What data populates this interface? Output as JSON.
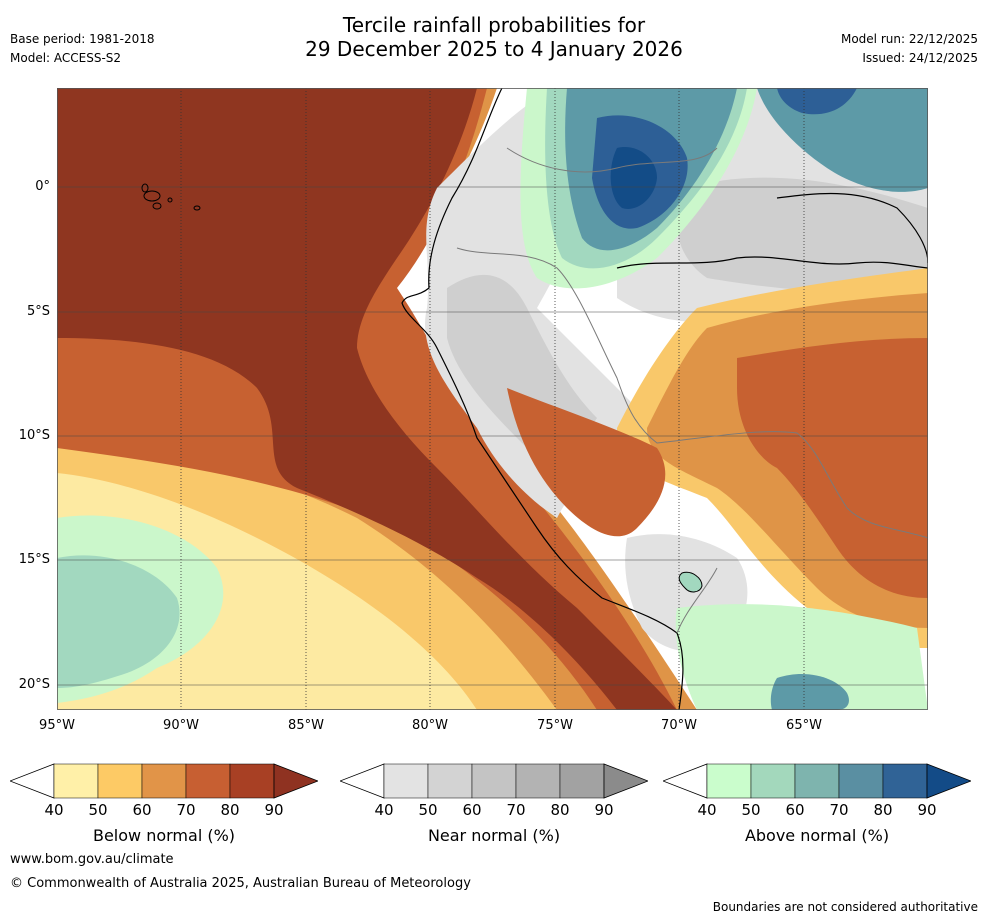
{
  "header": {
    "base_period": "Base period: 1981-2018",
    "model": "Model: ACCESS-S2",
    "title_line1": "Tercile rainfall probabilities for",
    "title_line2": "29 December 2025 to 4 January 2026",
    "model_run": "Model run: 22/12/2025",
    "issued": "Issued: 24/12/2025"
  },
  "map": {
    "lat_labels": [
      "0°",
      "5°S",
      "10°S",
      "15°S",
      "20°S"
    ],
    "lon_labels": [
      "95°W",
      "90°W",
      "85°W",
      "80°W",
      "75°W",
      "70°W",
      "65°W"
    ],
    "region_colors": {
      "below_dark": "#8f3620",
      "below_mid": "#c76131",
      "below_light": "#df9447",
      "below_pale": "#f9c86a",
      "below_faint": "#fdeaa2",
      "near_light": "#e2e2e2",
      "near_mid": "#cfcfcf",
      "above_faint": "#cbf7cb",
      "above_pale": "#a2d8bf",
      "above_mid": "#5d9aa7",
      "above_dark": "#2d5f96",
      "above_deep": "#134c87"
    }
  },
  "colorbars": [
    {
      "name": "below",
      "label": "Below normal (%)",
      "ticks": [
        "40",
        "50",
        "60",
        "70",
        "80",
        "90"
      ],
      "colors": [
        "#ffffff",
        "#fff0a8",
        "#fdca65",
        "#e19448",
        "#c75f32",
        "#a84024",
        "#8f3221"
      ]
    },
    {
      "name": "near",
      "label": "Near normal (%)",
      "ticks": [
        "40",
        "50",
        "60",
        "70",
        "80",
        "90"
      ],
      "colors": [
        "#ffffff",
        "#e3e3e3",
        "#d3d3d3",
        "#c4c4c4",
        "#b3b3b3",
        "#a2a2a2",
        "#8b8b8b"
      ]
    },
    {
      "name": "above",
      "label": "Above normal (%)",
      "ticks": [
        "40",
        "50",
        "60",
        "70",
        "80",
        "90"
      ],
      "colors": [
        "#ffffff",
        "#cafdcc",
        "#a3d8bc",
        "#7eb4ae",
        "#5a8fa2",
        "#306396",
        "#134b87"
      ]
    }
  ],
  "footer": {
    "url": "www.bom.gov.au/climate",
    "copyright": "© Commonwealth of Australia 2025, Australian Bureau of Meteorology",
    "disclaimer": "Boundaries are not considered authoritative"
  }
}
